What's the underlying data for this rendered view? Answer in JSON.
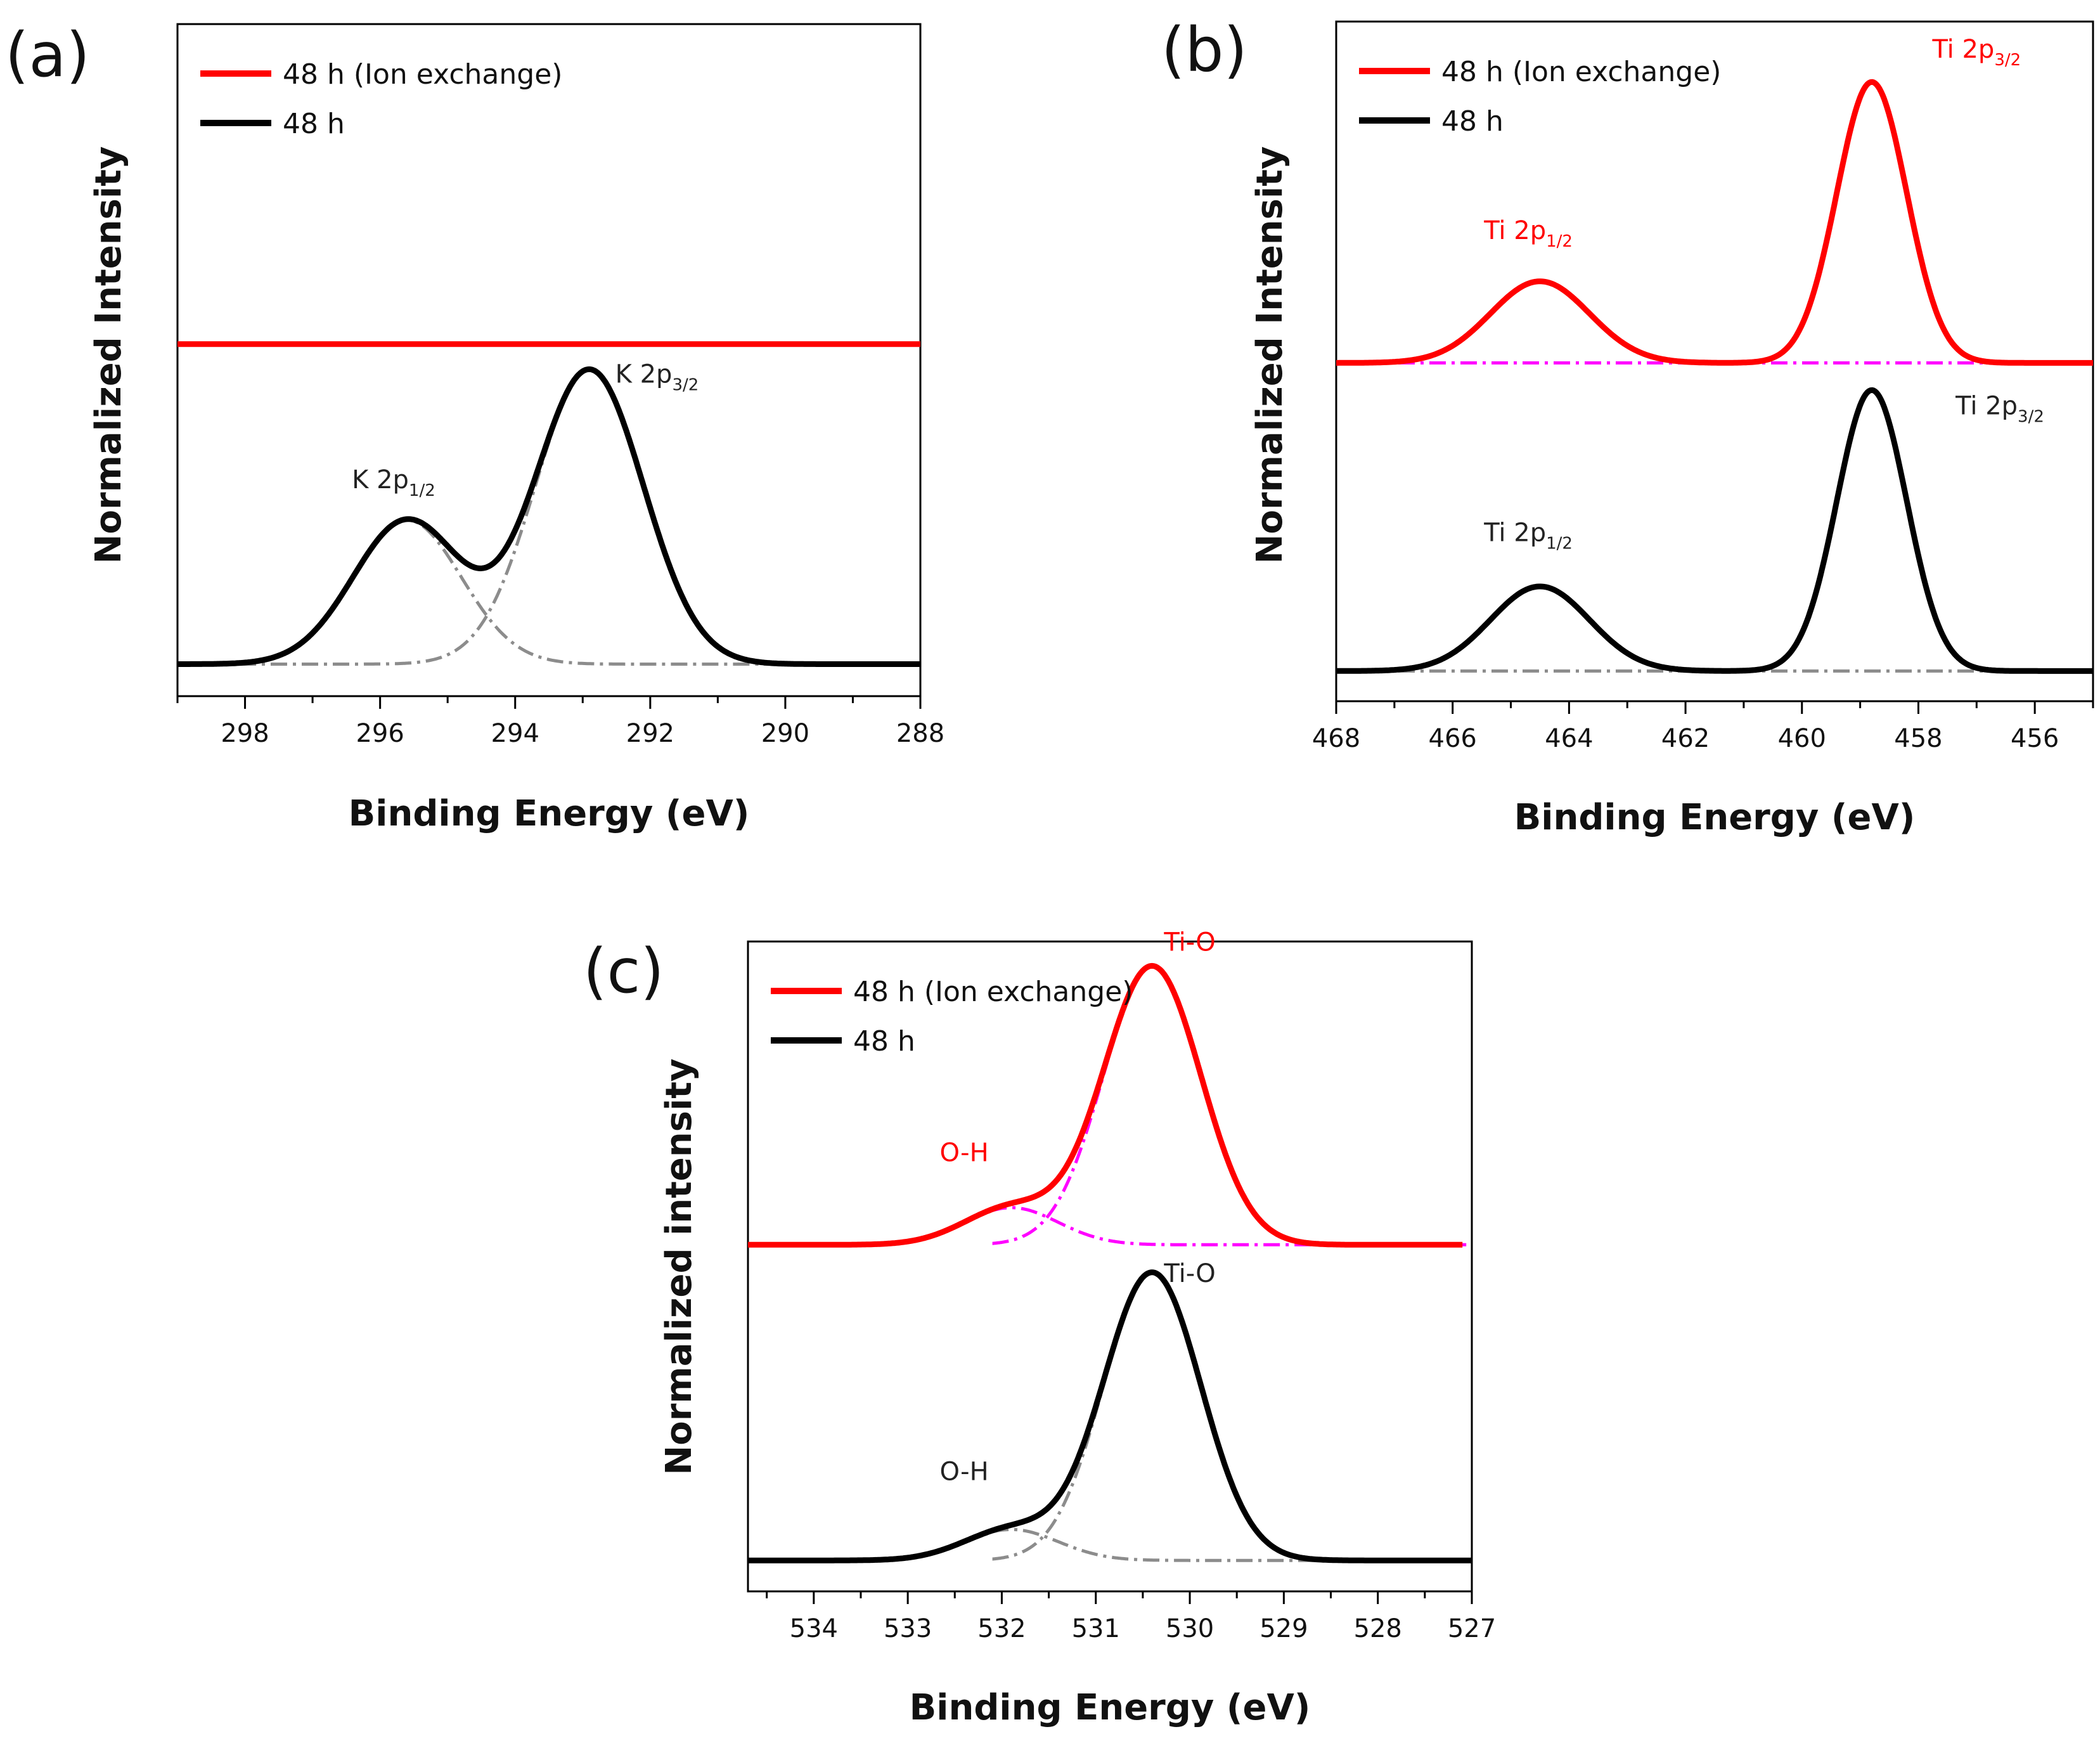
{
  "figure": {
    "background": "#ffffff"
  },
  "colors": {
    "ion_exchange": "#ff0000",
    "as_prepared": "#000000",
    "fit_gray": "#8c8c8c",
    "fit_magenta": "#ff00ff"
  },
  "chart_data": [
    {
      "id": "a",
      "type": "line",
      "panel_label": "(a)",
      "title": "",
      "xlabel": "Binding Energy (eV)",
      "ylabel": "Normalized Intensity",
      "xlim": [
        299,
        288
      ],
      "x_reversed": true,
      "ylim": [
        -0.1,
        2.0
      ],
      "xticks": [
        298,
        296,
        294,
        292,
        290,
        288
      ],
      "yticks_shown": false,
      "legend": {
        "position": "top-left",
        "entries": [
          {
            "label": "48 h (Ion exchange)",
            "color": "#ff0000"
          },
          {
            "label": "48 h",
            "color": "#000000"
          }
        ]
      },
      "series": [
        {
          "name": "48 h (Ion exchange)",
          "color": "#ff0000",
          "offset": 1.0,
          "baseline": true,
          "peaks": []
        },
        {
          "name": "48 h",
          "color": "#000000",
          "offset": 0.0,
          "peaks": [
            {
              "center": 295.6,
              "height": 0.45,
              "sigma": 0.8
            },
            {
              "center": 292.9,
              "height": 0.92,
              "sigma": 0.8
            }
          ]
        }
      ],
      "fit_components": [
        {
          "series": "48 h",
          "color": "#8c8c8c",
          "center": 295.6,
          "height": 0.45,
          "sigma": 0.8
        },
        {
          "series": "48 h",
          "color": "#8c8c8c",
          "center": 292.9,
          "height": 0.92,
          "sigma": 0.8
        }
      ],
      "annotations": [
        {
          "text": "K 2p",
          "sub": "1/2",
          "x": 295.8,
          "y": 0.55,
          "color": "#222222"
        },
        {
          "text": "K 2p",
          "sub": "3/2",
          "x": 291.9,
          "y": 0.88,
          "color": "#222222"
        }
      ]
    },
    {
      "id": "b",
      "type": "line",
      "panel_label": "(b)",
      "title": "",
      "xlabel": "Binding Energy (eV)",
      "ylabel": "Normalized Intensity",
      "xlim": [
        468,
        455
      ],
      "x_reversed": true,
      "ylim": [
        -0.1,
        2.15
      ],
      "xticks": [
        468,
        466,
        464,
        462,
        460,
        458,
        456
      ],
      "yticks_shown": false,
      "legend": {
        "position": "top-left",
        "entries": [
          {
            "label": "48 h (Ion exchange)",
            "color": "#ff0000"
          },
          {
            "label": "48 h",
            "color": "#000000"
          }
        ]
      },
      "series": [
        {
          "name": "48 h (Ion exchange)",
          "color": "#ff0000",
          "offset": 1.02,
          "peaks": [
            {
              "center": 464.5,
              "height": 0.27,
              "sigma": 0.85
            },
            {
              "center": 458.8,
              "height": 0.93,
              "sigma": 0.6
            }
          ]
        },
        {
          "name": "48 h",
          "color": "#000000",
          "offset": 0.0,
          "peaks": [
            {
              "center": 464.5,
              "height": 0.28,
              "sigma": 0.85
            },
            {
              "center": 458.8,
              "height": 0.93,
              "sigma": 0.6
            }
          ]
        }
      ],
      "fit_components": [
        {
          "series": "48 h (Ion exchange)",
          "color": "#ff00ff",
          "baseline": true
        },
        {
          "series": "48 h",
          "color": "#8c8c8c",
          "baseline": true
        }
      ],
      "annotations": [
        {
          "text": "Ti 2p",
          "sub": "1/2",
          "x": 464.7,
          "y": 1.43,
          "color": "#ff0000"
        },
        {
          "text": "Ti 2p",
          "sub": "3/2",
          "x": 457.0,
          "y": 2.03,
          "color": "#ff0000"
        },
        {
          "text": "Ti 2p",
          "sub": "1/2",
          "x": 464.7,
          "y": 0.43,
          "color": "#222222"
        },
        {
          "text": "Ti 2p",
          "sub": "3/2",
          "x": 456.6,
          "y": 0.85,
          "color": "#222222"
        }
      ]
    },
    {
      "id": "c",
      "type": "line",
      "panel_label": "(c)",
      "title": "",
      "xlabel": "Binding Energy (eV)",
      "ylabel": "Normalized intensity",
      "xlim": [
        534.7,
        527
      ],
      "x_reversed": true,
      "ylim": [
        -0.1,
        2.0
      ],
      "xticks": [
        534,
        533,
        532,
        531,
        530,
        529,
        528,
        527
      ],
      "yticks_shown": false,
      "legend": {
        "position": "top-left",
        "entries": [
          {
            "label": "48 h (Ion exchange)",
            "color": "#ff0000"
          },
          {
            "label": "48 h",
            "color": "#000000"
          }
        ]
      },
      "series": [
        {
          "name": "48 h (Ion exchange)",
          "color": "#ff0000",
          "offset": 1.02,
          "x_end": 527.1,
          "peaks": [
            {
              "center": 530.4,
              "height": 0.9,
              "sigma": 0.52
            },
            {
              "center": 531.9,
              "height": 0.12,
              "sigma": 0.5
            }
          ]
        },
        {
          "name": "48 h",
          "color": "#000000",
          "offset": 0.0,
          "peaks": [
            {
              "center": 530.4,
              "height": 0.93,
              "sigma": 0.52
            },
            {
              "center": 531.9,
              "height": 0.1,
              "sigma": 0.5
            }
          ]
        }
      ],
      "fit_components": [
        {
          "series": "48 h (Ion exchange)",
          "color": "#ff00ff",
          "center": 531.9,
          "height": 0.12,
          "sigma": 0.5
        },
        {
          "series": "48 h (Ion exchange)",
          "color": "#ff00ff",
          "center": 530.4,
          "height": 0.9,
          "sigma": 0.52,
          "x_min": 530.2,
          "x_max": 532.1
        },
        {
          "series": "48 h",
          "color": "#8c8c8c",
          "center": 531.9,
          "height": 0.1,
          "sigma": 0.5
        },
        {
          "series": "48 h",
          "color": "#8c8c8c",
          "center": 530.4,
          "height": 0.93,
          "sigma": 0.52,
          "x_min": 530.2,
          "x_max": 532.1
        }
      ],
      "annotations": [
        {
          "text": "Ti-O",
          "sub": "",
          "x": 530.0,
          "y": 1.97,
          "color": "#ff0000"
        },
        {
          "text": "O-H",
          "sub": "",
          "x": 532.4,
          "y": 1.29,
          "color": "#ff0000"
        },
        {
          "text": "Ti-O",
          "sub": "",
          "x": 530.0,
          "y": 0.9,
          "color": "#222222"
        },
        {
          "text": "O-H",
          "sub": "",
          "x": 532.4,
          "y": 0.26,
          "color": "#222222"
        }
      ]
    }
  ]
}
